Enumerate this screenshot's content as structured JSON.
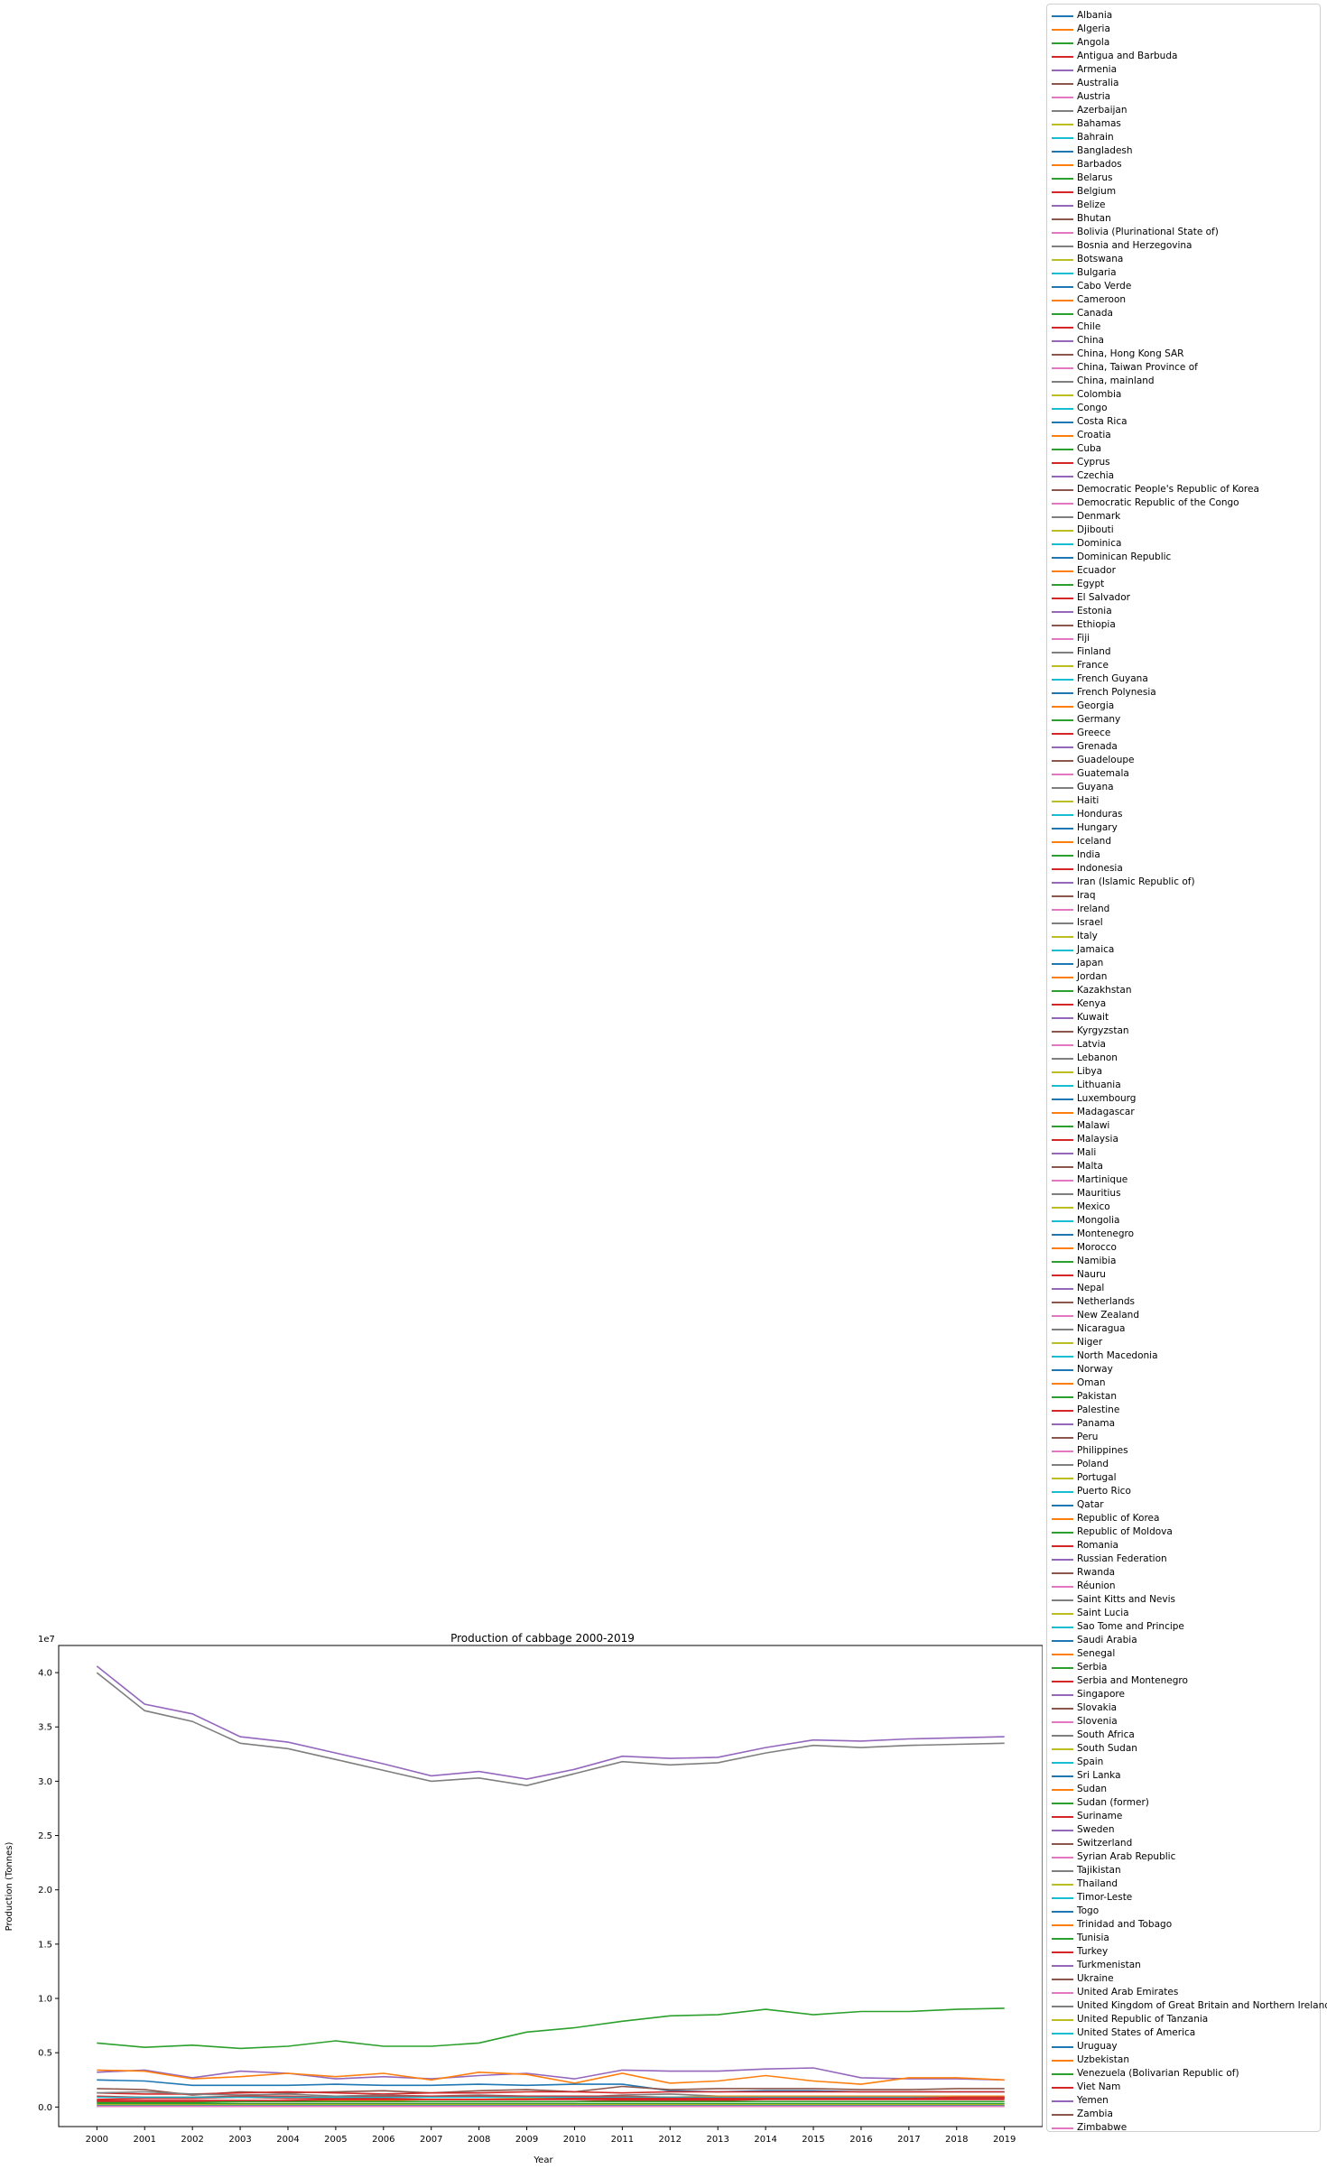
{
  "chart_data": {
    "type": "line",
    "title": "Production of cabbage 2000-2019",
    "xlabel": "Year",
    "ylabel": "Production (Tonnes)",
    "y_scale_label": "1e7",
    "x": [
      2000,
      2001,
      2002,
      2003,
      2004,
      2005,
      2006,
      2007,
      2008,
      2009,
      2010,
      2011,
      2012,
      2013,
      2014,
      2015,
      2016,
      2017,
      2018,
      2019
    ],
    "xlim": [
      1999.2,
      2019.8
    ],
    "ylim": [
      -1800000,
      42500000
    ],
    "yticks": [
      0,
      5000000,
      10000000,
      15000000,
      20000000,
      25000000,
      30000000,
      35000000,
      40000000
    ],
    "ytick_labels": [
      "0.0",
      "0.5",
      "1.0",
      "1.5",
      "2.0",
      "2.5",
      "3.0",
      "3.5",
      "4.0"
    ],
    "legend_position": "outside-right",
    "palette": [
      "#1f77b4",
      "#ff7f0e",
      "#2ca02c",
      "#d62728",
      "#9467bd",
      "#8c564b",
      "#e377c2",
      "#7f7f7f",
      "#bcbd22",
      "#17becf"
    ],
    "countries": [
      "Albania",
      "Algeria",
      "Angola",
      "Antigua and Barbuda",
      "Armenia",
      "Australia",
      "Austria",
      "Azerbaijan",
      "Bahamas",
      "Bahrain",
      "Bangladesh",
      "Barbados",
      "Belarus",
      "Belgium",
      "Belize",
      "Bhutan",
      "Bolivia (Plurinational State of)",
      "Bosnia and Herzegovina",
      "Botswana",
      "Bulgaria",
      "Cabo Verde",
      "Cameroon",
      "Canada",
      "Chile",
      "China",
      "China, Hong Kong SAR",
      "China, Taiwan Province of",
      "China, mainland",
      "Colombia",
      "Congo",
      "Costa Rica",
      "Croatia",
      "Cuba",
      "Cyprus",
      "Czechia",
      "Democratic People's Republic of Korea",
      "Democratic Republic of the Congo",
      "Denmark",
      "Djibouti",
      "Dominica",
      "Dominican Republic",
      "Ecuador",
      "Egypt",
      "El Salvador",
      "Estonia",
      "Ethiopia",
      "Fiji",
      "Finland",
      "France",
      "French Guyana",
      "French Polynesia",
      "Georgia",
      "Germany",
      "Greece",
      "Grenada",
      "Guadeloupe",
      "Guatemala",
      "Guyana",
      "Haiti",
      "Honduras",
      "Hungary",
      "Iceland",
      "India",
      "Indonesia",
      "Iran (Islamic Republic of)",
      "Iraq",
      "Ireland",
      "Israel",
      "Italy",
      "Jamaica",
      "Japan",
      "Jordan",
      "Kazakhstan",
      "Kenya",
      "Kuwait",
      "Kyrgyzstan",
      "Latvia",
      "Lebanon",
      "Libya",
      "Lithuania",
      "Luxembourg",
      "Madagascar",
      "Malawi",
      "Malaysia",
      "Mali",
      "Malta",
      "Martinique",
      "Mauritius",
      "Mexico",
      "Mongolia",
      "Montenegro",
      "Morocco",
      "Namibia",
      "Nauru",
      "Nepal",
      "Netherlands",
      "New Zealand",
      "Nicaragua",
      "Niger",
      "North Macedonia",
      "Norway",
      "Oman",
      "Pakistan",
      "Palestine",
      "Panama",
      "Peru",
      "Philippines",
      "Poland",
      "Portugal",
      "Puerto Rico",
      "Qatar",
      "Republic of Korea",
      "Republic of Moldova",
      "Romania",
      "Russian Federation",
      "Rwanda",
      "Réunion",
      "Saint Kitts and Nevis",
      "Saint Lucia",
      "Sao Tome and Principe",
      "Saudi Arabia",
      "Senegal",
      "Serbia",
      "Serbia and Montenegro",
      "Singapore",
      "Slovakia",
      "Slovenia",
      "South Africa",
      "South Sudan",
      "Spain",
      "Sri Lanka",
      "Sudan",
      "Sudan (former)",
      "Suriname",
      "Sweden",
      "Switzerland",
      "Syrian Arab Republic",
      "Tajikistan",
      "Thailand",
      "Timor-Leste",
      "Togo",
      "Trinidad and Tobago",
      "Tunisia",
      "Turkey",
      "Turkmenistan",
      "Ukraine",
      "United Arab Emirates",
      "United Kingdom of Great Britain and Northern Ireland",
      "United Republic of Tanzania",
      "United States of America",
      "Uruguay",
      "Uzbekistan",
      "Venezuela (Bolivarian Republic of)",
      "Viet Nam",
      "Yemen",
      "Zambia",
      "Zimbabwe"
    ],
    "series": [
      {
        "name": "China",
        "values": [
          40600000,
          37100000,
          36200000,
          34100000,
          33600000,
          32600000,
          31600000,
          30500000,
          30900000,
          30200000,
          31100000,
          32300000,
          32100000,
          32200000,
          33100000,
          33800000,
          33700000,
          33900000,
          34000000,
          34100000
        ]
      },
      {
        "name": "China, mainland",
        "values": [
          40000000,
          36500000,
          35500000,
          33500000,
          33000000,
          32000000,
          31000000,
          30000000,
          30300000,
          29600000,
          30700000,
          31800000,
          31500000,
          31700000,
          32600000,
          33300000,
          33100000,
          33300000,
          33400000,
          33500000
        ]
      },
      {
        "name": "India",
        "values": [
          5900000,
          5500000,
          5700000,
          5400000,
          5600000,
          6100000,
          5600000,
          5600000,
          5900000,
          6900000,
          7300000,
          7900000,
          8400000,
          8500000,
          9000000,
          8500000,
          8800000,
          8800000,
          9000000,
          9100000
        ]
      },
      {
        "name": "Russian Federation",
        "values": [
          3200000,
          3400000,
          2700000,
          3300000,
          3100000,
          2600000,
          2800000,
          2600000,
          2900000,
          3100000,
          2600000,
          3400000,
          3300000,
          3300000,
          3500000,
          3600000,
          2700000,
          2600000,
          2600000,
          2500000
        ]
      },
      {
        "name": "Republic of Korea",
        "values": [
          3400000,
          3300000,
          2600000,
          2800000,
          3100000,
          2800000,
          3100000,
          2500000,
          3200000,
          3000000,
          2200000,
          3100000,
          2200000,
          2400000,
          2900000,
          2400000,
          2100000,
          2700000,
          2700000,
          2500000
        ]
      },
      {
        "name": "Japan",
        "values": [
          2500000,
          2400000,
          2000000,
          2000000,
          2000000,
          2100000,
          2000000,
          2000000,
          2100000,
          2000000,
          2100000,
          2100000,
          1500000,
          1400000,
          1500000,
          1500000,
          1400000,
          1400000,
          1400000,
          1400000
        ]
      },
      {
        "name": "Ukraine",
        "values": [
          1700000,
          1600000,
          1100000,
          1400000,
          1300000,
          1400000,
          1500000,
          1300000,
          1500000,
          1600000,
          1400000,
          1900000,
          1600000,
          1700000,
          1700000,
          1700000,
          1600000,
          1600000,
          1700000,
          1700000
        ]
      },
      {
        "name": "Indonesia",
        "values": [
          1300000,
          1200000,
          1200000,
          1300000,
          1400000,
          1300000,
          1200000,
          1300000,
          1300000,
          1400000,
          1400000,
          1300000,
          1400000,
          1400000,
          1400000,
          1400000,
          1400000,
          1400000,
          1400000,
          1400000
        ]
      },
      {
        "name": "Poland",
        "values": [
          1300000,
          1400000,
          1200000,
          1100000,
          1200000,
          1000000,
          1100000,
          1000000,
          1100000,
          1000000,
          900000,
          1100000,
          1200000,
          1000000,
          1000000,
          1000000,
          900000,
          1000000,
          900000,
          900000
        ]
      },
      {
        "name": "Turkey",
        "values": [
          700000,
          800000,
          800000,
          900000,
          800000,
          800000,
          800000,
          700000,
          700000,
          700000,
          700000,
          700000,
          700000,
          700000,
          800000,
          800000,
          800000,
          800000,
          800000,
          800000
        ]
      },
      {
        "name": "Romania",
        "values": [
          1000000,
          900000,
          900000,
          1000000,
          1000000,
          900000,
          1000000,
          1000000,
          1000000,
          1000000,
          1000000,
          1000000,
          900000,
          900000,
          1000000,
          900000,
          900000,
          1000000,
          900000,
          900000
        ]
      },
      {
        "name": "Uzbekistan",
        "values": [
          500000,
          500000,
          500000,
          500000,
          600000,
          600000,
          600000,
          700000,
          700000,
          800000,
          800000,
          900000,
          900000,
          1000000,
          1000000,
          1000000,
          1000000,
          1000000,
          1000000,
          1000000
        ]
      },
      {
        "name": "United States of America",
        "values": [
          900000,
          900000,
          900000,
          900000,
          900000,
          900000,
          900000,
          900000,
          900000,
          900000,
          900000,
          900000,
          900000,
          900000,
          900000,
          900000,
          900000,
          900000,
          900000,
          900000
        ]
      },
      {
        "name": "Kenya",
        "values": [
          500000,
          500000,
          500000,
          500000,
          500000,
          500000,
          500000,
          500000,
          500000,
          500000,
          500000,
          600000,
          600000,
          600000,
          700000,
          700000,
          700000,
          700000,
          700000,
          700000
        ]
      },
      {
        "name": "Egypt",
        "values": [
          400000,
          400000,
          400000,
          500000,
          500000,
          500000,
          500000,
          500000,
          500000,
          500000,
          500000,
          500000,
          500000,
          500000,
          500000,
          500000,
          500000,
          500000,
          500000,
          500000
        ]
      },
      {
        "name": "Germany",
        "values": [
          300000,
          300000,
          300000,
          300000,
          300000,
          300000,
          300000,
          300000,
          300000,
          300000,
          300000,
          300000,
          300000,
          300000,
          300000,
          300000,
          300000,
          300000,
          300000,
          300000
        ]
      },
      {
        "name": "Mexico",
        "values": [
          200000,
          200000,
          200000,
          200000,
          200000,
          200000,
          200000,
          200000,
          200000,
          200000,
          200000,
          200000,
          200000,
          200000,
          200000,
          200000,
          200000,
          200000,
          200000,
          200000
        ]
      },
      {
        "name": "Viet Nam",
        "values": [
          600000,
          600000,
          600000,
          600000,
          600000,
          700000,
          700000,
          700000,
          700000,
          700000,
          800000,
          800000,
          800000,
          800000,
          800000,
          800000,
          800000,
          800000,
          900000,
          900000
        ]
      },
      {
        "name": "Albania",
        "values": [
          100000,
          100000,
          100000,
          100000,
          100000,
          100000,
          100000,
          100000,
          100000,
          100000,
          100000,
          100000,
          100000,
          100000,
          100000,
          100000,
          100000,
          100000,
          100000,
          100000
        ]
      },
      {
        "name": "Zimbabwe",
        "values": [
          50000,
          50000,
          50000,
          50000,
          50000,
          50000,
          50000,
          50000,
          50000,
          50000,
          50000,
          50000,
          50000,
          50000,
          50000,
          50000,
          50000,
          50000,
          50000,
          50000
        ]
      }
    ]
  }
}
